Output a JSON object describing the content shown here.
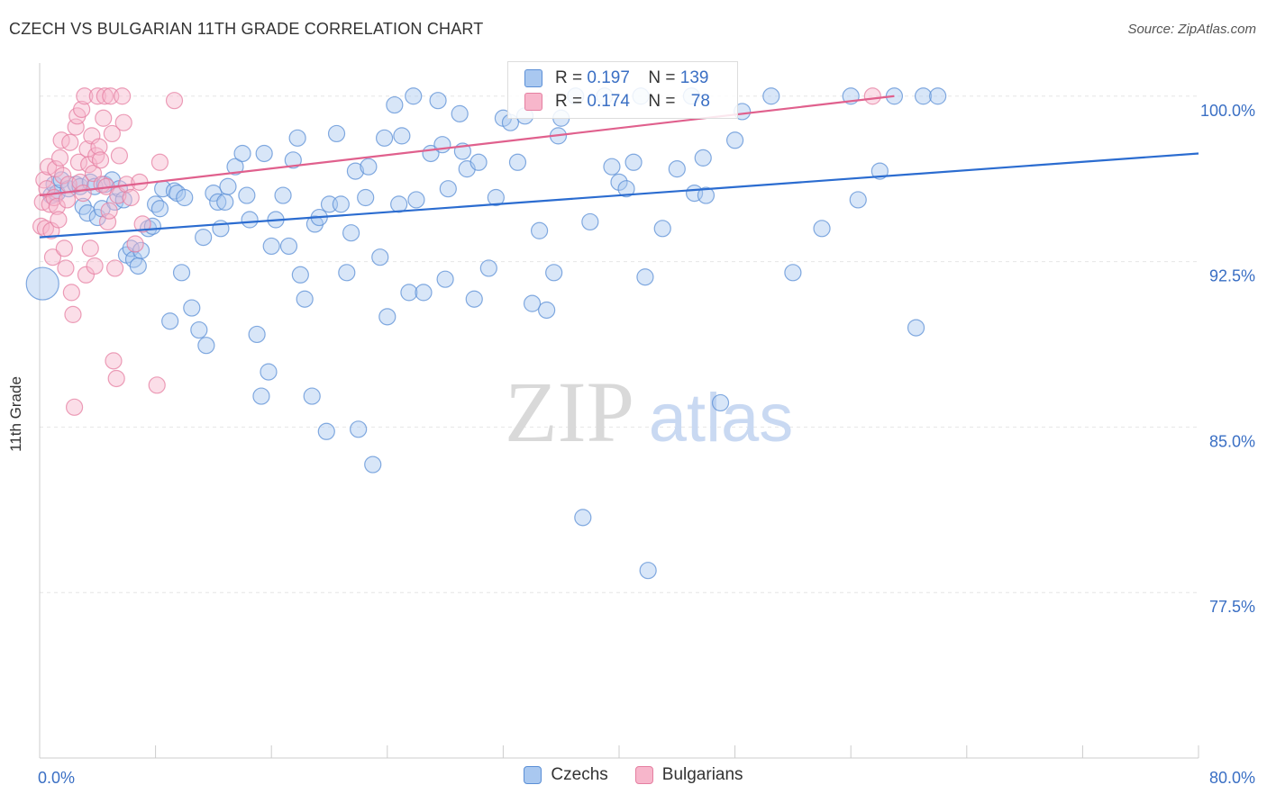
{
  "title": "CZECH VS BULGARIAN 11TH GRADE CORRELATION CHART",
  "source": "Source: ZipAtlas.com",
  "watermark": {
    "zip": "ZIP",
    "atlas": "atlas"
  },
  "legend": [
    {
      "name": "Czechs",
      "R_label": "R =",
      "R": "0.197",
      "N_label": "N =",
      "N": "139",
      "color": "#a9c8f0",
      "stroke": "#5b8fd6"
    },
    {
      "name": "Bulgarians",
      "R_label": "R =",
      "R": "0.174",
      "N_label": "N =",
      "N": "78",
      "color": "#f7b6cb",
      "stroke": "#e57fa1"
    }
  ],
  "chart_data": {
    "type": "scatter",
    "title": "CZECH VS BULGARIAN 11TH GRADE CORRELATION CHART",
    "xlabel": "",
    "ylabel": "11th Grade",
    "xlim": [
      0,
      80
    ],
    "ylim": [
      70,
      101.5
    ],
    "x_ticks": [
      {
        "v": 0,
        "label": "0.0%"
      },
      {
        "v": 80,
        "label": "80.0%"
      }
    ],
    "y_ticks": [
      {
        "v": 100,
        "label": "100.0%"
      },
      {
        "v": 92.5,
        "label": "92.5%"
      },
      {
        "v": 85,
        "label": "85.0%"
      },
      {
        "v": 77.5,
        "label": "77.5%"
      }
    ],
    "grid": true,
    "legend_position": "top-center",
    "series": [
      {
        "name": "Czechs",
        "color": "#5b8fd6",
        "fill": "#a9c8f0",
        "trend": [
          [
            0,
            93.6
          ],
          [
            80,
            97.4
          ]
        ],
        "points": [
          [
            0.2,
            91.5
          ],
          [
            0.8,
            95.5
          ],
          [
            1.0,
            96.0
          ],
          [
            1.2,
            95.6
          ],
          [
            1.5,
            96.2
          ],
          [
            2.0,
            95.8
          ],
          [
            2.5,
            96.0
          ],
          [
            2.8,
            95.9
          ],
          [
            3.0,
            95.0
          ],
          [
            3.3,
            94.7
          ],
          [
            3.5,
            96.1
          ],
          [
            3.8,
            95.9
          ],
          [
            4.0,
            94.5
          ],
          [
            4.3,
            94.9
          ],
          [
            4.5,
            96.0
          ],
          [
            5.0,
            96.2
          ],
          [
            5.2,
            95.2
          ],
          [
            5.5,
            95.8
          ],
          [
            5.8,
            95.3
          ],
          [
            6.0,
            92.8
          ],
          [
            6.3,
            93.1
          ],
          [
            6.5,
            92.6
          ],
          [
            6.8,
            92.3
          ],
          [
            7.0,
            93.0
          ],
          [
            7.5,
            94.0
          ],
          [
            7.8,
            94.1
          ],
          [
            8.0,
            95.1
          ],
          [
            8.3,
            94.9
          ],
          [
            8.5,
            95.8
          ],
          [
            9.0,
            89.8
          ],
          [
            9.3,
            95.7
          ],
          [
            9.5,
            95.6
          ],
          [
            9.8,
            92.0
          ],
          [
            10.0,
            95.4
          ],
          [
            10.5,
            90.4
          ],
          [
            11.0,
            89.4
          ],
          [
            11.3,
            93.6
          ],
          [
            11.5,
            88.7
          ],
          [
            12.0,
            95.6
          ],
          [
            12.3,
            95.2
          ],
          [
            12.5,
            94.0
          ],
          [
            12.8,
            95.2
          ],
          [
            13.0,
            95.9
          ],
          [
            13.5,
            96.8
          ],
          [
            14.0,
            97.4
          ],
          [
            14.3,
            95.5
          ],
          [
            14.5,
            94.4
          ],
          [
            15.0,
            89.2
          ],
          [
            15.3,
            86.4
          ],
          [
            15.5,
            97.4
          ],
          [
            15.8,
            87.5
          ],
          [
            16.0,
            93.2
          ],
          [
            16.3,
            94.4
          ],
          [
            16.8,
            95.5
          ],
          [
            17.2,
            93.2
          ],
          [
            17.5,
            97.1
          ],
          [
            17.8,
            98.1
          ],
          [
            18.0,
            91.9
          ],
          [
            18.3,
            90.8
          ],
          [
            18.8,
            86.4
          ],
          [
            19.0,
            94.2
          ],
          [
            19.3,
            94.5
          ],
          [
            19.8,
            84.8
          ],
          [
            20.0,
            95.1
          ],
          [
            20.5,
            98.3
          ],
          [
            20.8,
            95.1
          ],
          [
            21.2,
            92.0
          ],
          [
            21.5,
            93.8
          ],
          [
            21.8,
            96.6
          ],
          [
            22.0,
            84.9
          ],
          [
            22.5,
            95.4
          ],
          [
            22.7,
            96.8
          ],
          [
            23.0,
            83.3
          ],
          [
            23.5,
            92.7
          ],
          [
            23.8,
            98.1
          ],
          [
            24.0,
            90.0
          ],
          [
            24.5,
            99.6
          ],
          [
            24.8,
            95.1
          ],
          [
            25.0,
            98.2
          ],
          [
            25.5,
            91.1
          ],
          [
            25.8,
            100.0
          ],
          [
            26.0,
            95.3
          ],
          [
            26.5,
            91.1
          ],
          [
            27.0,
            97.4
          ],
          [
            27.5,
            99.8
          ],
          [
            27.8,
            97.8
          ],
          [
            28.0,
            91.7
          ],
          [
            28.2,
            95.8
          ],
          [
            29.0,
            99.2
          ],
          [
            29.2,
            97.5
          ],
          [
            29.5,
            96.7
          ],
          [
            30.0,
            90.8
          ],
          [
            30.3,
            97.0
          ],
          [
            31.0,
            92.2
          ],
          [
            31.5,
            95.4
          ],
          [
            32.0,
            99.0
          ],
          [
            32.5,
            98.8
          ],
          [
            33.0,
            97.0
          ],
          [
            33.5,
            99.1
          ],
          [
            34.0,
            90.6
          ],
          [
            34.5,
            93.9
          ],
          [
            35.0,
            90.3
          ],
          [
            35.5,
            92.0
          ],
          [
            35.8,
            98.2
          ],
          [
            36.0,
            99.0
          ],
          [
            37.0,
            100.0
          ],
          [
            37.5,
            80.9
          ],
          [
            38.0,
            94.3
          ],
          [
            39.0,
            100.0
          ],
          [
            39.5,
            96.8
          ],
          [
            40.0,
            96.1
          ],
          [
            40.5,
            95.8
          ],
          [
            41.0,
            97.0
          ],
          [
            41.5,
            100.0
          ],
          [
            41.8,
            91.8
          ],
          [
            42.0,
            78.5
          ],
          [
            43.0,
            94.0
          ],
          [
            44.0,
            96.7
          ],
          [
            45.0,
            100.0
          ],
          [
            45.2,
            95.6
          ],
          [
            45.8,
            97.2
          ],
          [
            46.0,
            95.5
          ],
          [
            47.0,
            86.1
          ],
          [
            48.0,
            98.0
          ],
          [
            48.5,
            99.3
          ],
          [
            50.5,
            100.0
          ],
          [
            52.0,
            92.0
          ],
          [
            54.0,
            94.0
          ],
          [
            56.0,
            100.0
          ],
          [
            56.5,
            95.3
          ],
          [
            58.0,
            96.6
          ],
          [
            59.0,
            100.0
          ],
          [
            60.5,
            89.5
          ],
          [
            61.0,
            100.0
          ],
          [
            62.0,
            100.0
          ]
        ]
      },
      {
        "name": "Bulgarians",
        "color": "#e57fa1",
        "fill": "#f7b6cb",
        "trend": [
          [
            0,
            95.5
          ],
          [
            59,
            100.0
          ]
        ],
        "points": [
          [
            0.1,
            94.1
          ],
          [
            0.2,
            95.2
          ],
          [
            0.3,
            96.2
          ],
          [
            0.4,
            94.0
          ],
          [
            0.5,
            95.8
          ],
          [
            0.6,
            96.8
          ],
          [
            0.7,
            95.1
          ],
          [
            0.8,
            93.9
          ],
          [
            0.9,
            92.7
          ],
          [
            1.0,
            95.4
          ],
          [
            1.1,
            96.7
          ],
          [
            1.2,
            95.0
          ],
          [
            1.3,
            94.4
          ],
          [
            1.4,
            97.2
          ],
          [
            1.5,
            98.0
          ],
          [
            1.6,
            96.4
          ],
          [
            1.7,
            93.1
          ],
          [
            1.8,
            92.2
          ],
          [
            1.9,
            95.3
          ],
          [
            2.0,
            96.0
          ],
          [
            2.1,
            97.9
          ],
          [
            2.2,
            91.1
          ],
          [
            2.3,
            90.1
          ],
          [
            2.4,
            85.9
          ],
          [
            2.5,
            98.6
          ],
          [
            2.6,
            99.1
          ],
          [
            2.7,
            97.0
          ],
          [
            2.8,
            96.1
          ],
          [
            2.9,
            99.4
          ],
          [
            3.0,
            95.6
          ],
          [
            3.1,
            100.0
          ],
          [
            3.2,
            91.9
          ],
          [
            3.3,
            97.6
          ],
          [
            3.4,
            96.9
          ],
          [
            3.5,
            93.1
          ],
          [
            3.6,
            98.2
          ],
          [
            3.7,
            96.5
          ],
          [
            3.8,
            92.3
          ],
          [
            3.9,
            97.3
          ],
          [
            4.0,
            100.0
          ],
          [
            4.1,
            97.7
          ],
          [
            4.2,
            97.1
          ],
          [
            4.3,
            96.0
          ],
          [
            4.4,
            99.0
          ],
          [
            4.5,
            100.0
          ],
          [
            4.6,
            95.9
          ],
          [
            4.7,
            94.3
          ],
          [
            4.8,
            94.8
          ],
          [
            4.9,
            100.0
          ],
          [
            5.0,
            98.3
          ],
          [
            5.1,
            88.0
          ],
          [
            5.2,
            92.2
          ],
          [
            5.3,
            87.2
          ],
          [
            5.4,
            95.5
          ],
          [
            5.5,
            97.3
          ],
          [
            5.7,
            100.0
          ],
          [
            5.8,
            98.8
          ],
          [
            6.0,
            96.0
          ],
          [
            6.3,
            95.4
          ],
          [
            6.6,
            93.3
          ],
          [
            6.9,
            96.1
          ],
          [
            7.1,
            94.2
          ],
          [
            8.1,
            86.9
          ],
          [
            8.3,
            97.0
          ],
          [
            9.3,
            99.8
          ],
          [
            57.5,
            100.0
          ]
        ]
      }
    ]
  }
}
